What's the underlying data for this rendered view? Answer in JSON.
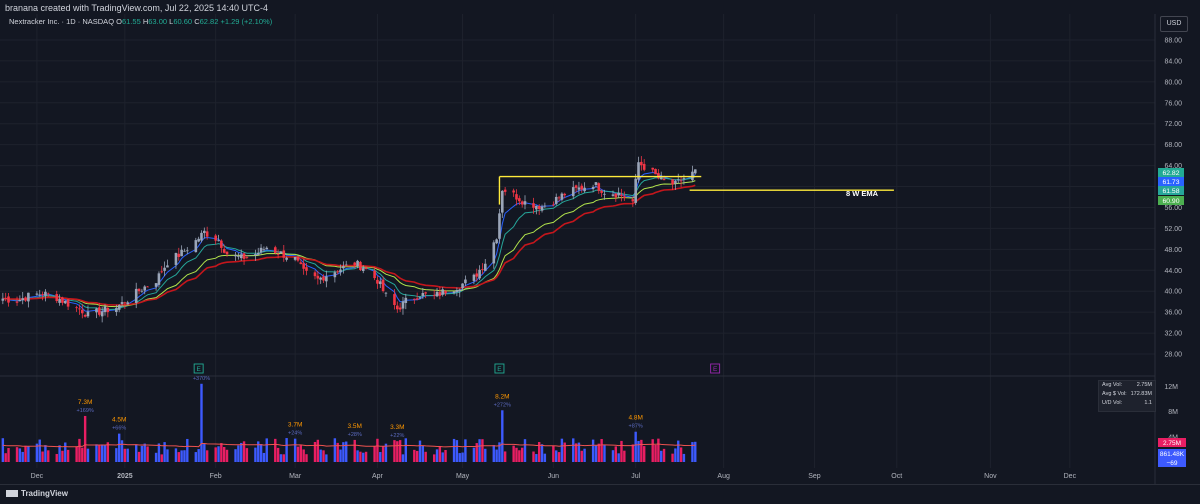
{
  "header": {
    "caption": "branana created with TradingView.com, Jul 22, 2025 14:40 UTC-4",
    "symbol": "Nextracker Inc. · 1D · NASDAQ",
    "ohlc": {
      "o_label": "O",
      "o": "61.55",
      "h_label": "H",
      "h": "63.00",
      "l_label": "L",
      "l": "60.60",
      "c_label": "C",
      "c": "62.82",
      "change": "+1.29 (+2.10%)"
    },
    "currency": "USD"
  },
  "colors": {
    "bg": "#131722",
    "up": "#9aa5b8",
    "down": "#f23645",
    "ema_fast": "#2962ff",
    "ema_mid": "#26a69a",
    "ema_slow": "#b2e34c",
    "ma_red": "#c4161c",
    "resistance": "#ffeb3b",
    "vol_up": "#3d5afe",
    "vol_down": "#e91e63",
    "vol_ma": "#ef5350"
  },
  "annotation": {
    "text": "8 W EMA"
  },
  "price_badges": [
    {
      "value": "62.82",
      "color": "#22ab94"
    },
    {
      "value": "61.73",
      "color": "#2962ff"
    },
    {
      "value": "61.58",
      "color": "#26a69a"
    },
    {
      "value": "60.90",
      "color": "#4caf50"
    }
  ],
  "events": [
    {
      "date": "2025-01-28",
      "label": "E",
      "color": "#22ab94"
    },
    {
      "date": "2025-05-14",
      "label": "E",
      "color": "#22ab94"
    },
    {
      "date": "2025-07-29",
      "label": "E",
      "color": "#9c27b0"
    }
  ],
  "volume_box": {
    "rows": [
      {
        "label": "Avg Vol:",
        "value": "2.75M"
      },
      {
        "label": "Avg $ Vol:",
        "value": "172.83M"
      },
      {
        "label": "U/D Vol:",
        "value": "1.1"
      }
    ]
  },
  "volume_badges": [
    {
      "value": "2.75M",
      "color": "#e91e63"
    },
    {
      "value": "861.48K",
      "color": "#3d5afe"
    },
    {
      "value": "−69",
      "color": "#3d5afe"
    }
  ],
  "volume_labels": [
    {
      "date": "2024-12-19",
      "value": "7.3M",
      "pct": "+169%"
    },
    {
      "date": "2024-12-31",
      "value": "4.5M",
      "pct": "+66%"
    },
    {
      "date": "2025-01-29",
      "value": "",
      "pct": "+370%"
    },
    {
      "date": "2025-03-03",
      "value": "3.7M",
      "pct": "+24%"
    },
    {
      "date": "2025-03-24",
      "value": "3.5M",
      "pct": "+28%"
    },
    {
      "date": "2025-04-08",
      "value": "3.3M",
      "pct": "+22%"
    },
    {
      "date": "2025-05-15",
      "value": "8.2M",
      "pct": "+272%"
    },
    {
      "date": "2025-07-01",
      "value": "4.8M",
      "pct": "+87%"
    }
  ],
  "footer": {
    "brand": "TradingView"
  },
  "chart_data": {
    "type": "candlestick",
    "price_axis": {
      "ticks": [
        "88.00",
        "84.00",
        "80.00",
        "76.00",
        "72.00",
        "68.00",
        "64.00",
        "60.00",
        "56.00",
        "52.00",
        "48.00",
        "44.00",
        "40.00",
        "36.00",
        "32.00",
        "28.00"
      ],
      "range": [
        25,
        90
      ]
    },
    "volume_axis": {
      "ticks": [
        "12M",
        "8M",
        "4M"
      ],
      "range": [
        0,
        13
      ]
    },
    "x_axis": {
      "labels": [
        "Dec",
        "2025",
        "Feb",
        "Mar",
        "Apr",
        "May",
        "Jun",
        "Jul",
        "Aug",
        "Sep",
        "Oct",
        "Nov",
        "Dec"
      ],
      "label_dates": [
        "2024-12-02",
        "2025-01-02",
        "2025-02-03",
        "2025-03-03",
        "2025-04-01",
        "2025-05-01",
        "2025-06-02",
        "2025-07-01",
        "2025-08-01",
        "2025-09-02",
        "2025-10-01",
        "2025-11-03",
        "2025-12-01"
      ],
      "range": [
        "2024-11-19",
        "2025-12-31"
      ]
    },
    "resistance": {
      "value": 61.9,
      "from": "2025-05-14",
      "to": "2025-07-22"
    },
    "ema_8w_level": {
      "value": 59.3,
      "from": "2025-07-20",
      "to": "2025-09-30"
    },
    "closes": [
      {
        "date": "2024-11-20",
        "c": 38.6
      },
      {
        "date": "2024-11-25",
        "c": 38.2
      },
      {
        "date": "2024-11-29",
        "c": 39.1
      },
      {
        "date": "2024-12-04",
        "c": 39.6
      },
      {
        "date": "2024-12-09",
        "c": 38.8
      },
      {
        "date": "2024-12-13",
        "c": 37.6
      },
      {
        "date": "2024-12-18",
        "c": 36.3
      },
      {
        "date": "2024-12-20",
        "c": 35.4
      },
      {
        "date": "2024-12-24",
        "c": 36.1
      },
      {
        "date": "2024-12-30",
        "c": 36.9
      },
      {
        "date": "2025-01-03",
        "c": 38.4
      },
      {
        "date": "2025-01-08",
        "c": 40.5
      },
      {
        "date": "2025-01-13",
        "c": 42.1
      },
      {
        "date": "2025-01-17",
        "c": 45.6
      },
      {
        "date": "2025-01-22",
        "c": 47.3
      },
      {
        "date": "2025-01-27",
        "c": 49.6
      },
      {
        "date": "2025-01-30",
        "c": 51.3
      },
      {
        "date": "2025-02-04",
        "c": 49.8
      },
      {
        "date": "2025-02-07",
        "c": 47.2
      },
      {
        "date": "2025-02-12",
        "c": 46.3
      },
      {
        "date": "2025-02-17",
        "c": 47.1
      },
      {
        "date": "2025-02-21",
        "c": 48.4
      },
      {
        "date": "2025-02-26",
        "c": 47.2
      },
      {
        "date": "2025-03-03",
        "c": 46.1
      },
      {
        "date": "2025-03-06",
        "c": 43.6
      },
      {
        "date": "2025-03-11",
        "c": 42.2
      },
      {
        "date": "2025-03-14",
        "c": 43.1
      },
      {
        "date": "2025-03-19",
        "c": 44.3
      },
      {
        "date": "2025-03-24",
        "c": 45.3
      },
      {
        "date": "2025-03-27",
        "c": 44.6
      },
      {
        "date": "2025-04-01",
        "c": 42.1
      },
      {
        "date": "2025-04-04",
        "c": 39.1
      },
      {
        "date": "2025-04-08",
        "c": 36.6
      },
      {
        "date": "2025-04-11",
        "c": 38.1
      },
      {
        "date": "2025-04-16",
        "c": 39.4
      },
      {
        "date": "2025-04-21",
        "c": 39.0
      },
      {
        "date": "2025-04-25",
        "c": 40.1
      },
      {
        "date": "2025-04-30",
        "c": 41.1
      },
      {
        "date": "2025-05-05",
        "c": 42.6
      },
      {
        "date": "2025-05-09",
        "c": 45.6
      },
      {
        "date": "2025-05-13",
        "c": 50.6
      },
      {
        "date": "2025-05-15",
        "c": 59.6
      },
      {
        "date": "2025-05-20",
        "c": 58.1
      },
      {
        "date": "2025-05-23",
        "c": 57.0
      },
      {
        "date": "2025-05-29",
        "c": 56.2
      },
      {
        "date": "2025-06-03",
        "c": 57.6
      },
      {
        "date": "2025-06-06",
        "c": 58.6
      },
      {
        "date": "2025-06-11",
        "c": 59.6
      },
      {
        "date": "2025-06-16",
        "c": 60.6
      },
      {
        "date": "2025-06-20",
        "c": 59.1
      },
      {
        "date": "2025-06-25",
        "c": 58.6
      },
      {
        "date": "2025-06-30",
        "c": 57.1
      },
      {
        "date": "2025-07-02",
        "c": 64.6
      },
      {
        "date": "2025-07-07",
        "c": 62.6
      },
      {
        "date": "2025-07-10",
        "c": 61.1
      },
      {
        "date": "2025-07-15",
        "c": 60.3
      },
      {
        "date": "2025-07-18",
        "c": 61.6
      },
      {
        "date": "2025-07-22",
        "c": 62.82
      }
    ]
  }
}
